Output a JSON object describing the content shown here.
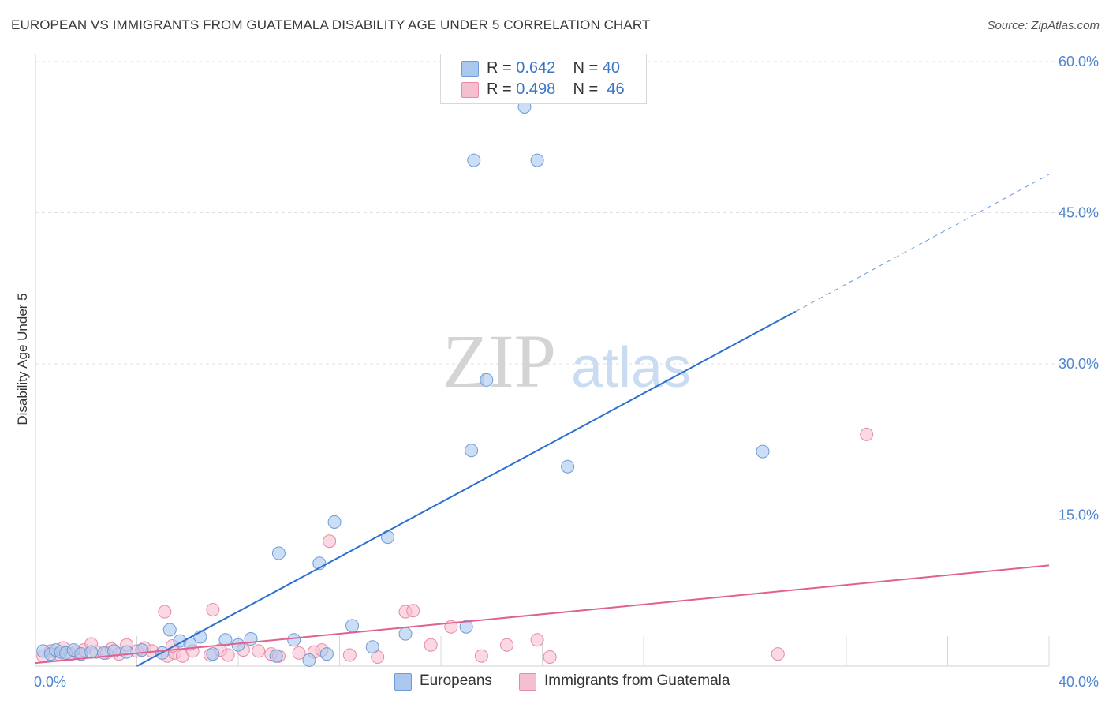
{
  "title": "EUROPEAN VS IMMIGRANTS FROM GUATEMALA DISABILITY AGE UNDER 5 CORRELATION CHART",
  "source": "Source: ZipAtlas.com",
  "watermark": {
    "zip": "ZIP",
    "atlas": "atlas"
  },
  "legend": [
    {
      "r_label": "R =",
      "r_value": "0.642",
      "n_label": "N =",
      "n_value": "40"
    },
    {
      "r_label": "R =",
      "r_value": "0.498",
      "n_label": "N =",
      "n_value": "46"
    }
  ],
  "bottom_legend": [
    "Europeans",
    "Immigrants from Guatemala"
  ],
  "colors": {
    "blue_fill": "#aac8ee",
    "blue_stroke": "#6f9bd6",
    "blue_line": "#2c6fcf",
    "pink_fill": "#f6bfd0",
    "pink_stroke": "#e98aa8",
    "pink_line": "#e0618e",
    "tick_text": "#4f85cf",
    "grid": "#e0e0e0"
  },
  "chart_data": {
    "type": "scatter",
    "title": "EUROPEAN VS IMMIGRANTS FROM GUATEMALA DISABILITY AGE UNDER 5 CORRELATION CHART",
    "xlabel": "",
    "ylabel": "Disability Age Under 5",
    "xlim": [
      0,
      40
    ],
    "ylim": [
      0,
      60
    ],
    "x_tick_labels": [
      "0.0%",
      "40.0%"
    ],
    "y_ticks": [
      15,
      30,
      45,
      60
    ],
    "y_tick_labels": [
      "15.0%",
      "30.0%",
      "45.0%",
      "60.0%"
    ],
    "series": [
      {
        "name": "Europeans",
        "r": 0.642,
        "n": 40,
        "trend": {
          "x0": 4.0,
          "y0": 0.0,
          "x1": 30.0,
          "y1": 35.2,
          "dash_x1": 40.0,
          "dash_y1": 48.8
        },
        "points": [
          [
            0.3,
            1.5
          ],
          [
            0.6,
            1.2
          ],
          [
            0.8,
            1.6
          ],
          [
            1.0,
            1.4
          ],
          [
            1.2,
            1.3
          ],
          [
            1.5,
            1.6
          ],
          [
            1.8,
            1.2
          ],
          [
            2.2,
            1.4
          ],
          [
            2.7,
            1.3
          ],
          [
            3.1,
            1.5
          ],
          [
            3.6,
            1.4
          ],
          [
            4.2,
            1.6
          ],
          [
            5.0,
            1.3
          ],
          [
            5.3,
            3.6
          ],
          [
            5.7,
            2.5
          ],
          [
            6.1,
            2.2
          ],
          [
            6.5,
            2.9
          ],
          [
            7.0,
            1.2
          ],
          [
            7.5,
            2.6
          ],
          [
            8.0,
            2.1
          ],
          [
            8.5,
            2.7
          ],
          [
            9.5,
            1.0
          ],
          [
            9.6,
            11.2
          ],
          [
            10.2,
            2.6
          ],
          [
            10.8,
            0.6
          ],
          [
            11.2,
            10.2
          ],
          [
            11.5,
            1.2
          ],
          [
            11.8,
            14.3
          ],
          [
            12.5,
            4.0
          ],
          [
            13.3,
            1.9
          ],
          [
            13.9,
            12.8
          ],
          [
            14.6,
            3.2
          ],
          [
            17.0,
            3.9
          ],
          [
            17.2,
            21.4
          ],
          [
            17.3,
            50.2
          ],
          [
            17.8,
            28.4
          ],
          [
            19.3,
            55.5
          ],
          [
            19.8,
            50.2
          ],
          [
            21.0,
            19.8
          ],
          [
            28.7,
            21.3
          ]
        ]
      },
      {
        "name": "Immigrants from Guatemala",
        "r": 0.498,
        "n": 46,
        "trend": {
          "x0": 0.0,
          "y0": 0.3,
          "x1": 40.0,
          "y1": 10.0
        },
        "points": [
          [
            0.3,
            1.0
          ],
          [
            0.6,
            1.5
          ],
          [
            0.9,
            1.2
          ],
          [
            1.1,
            1.8
          ],
          [
            1.4,
            1.2
          ],
          [
            1.6,
            1.4
          ],
          [
            1.9,
            1.6
          ],
          [
            2.2,
            2.2
          ],
          [
            2.4,
            1.4
          ],
          [
            2.8,
            1.3
          ],
          [
            3.0,
            1.7
          ],
          [
            3.3,
            1.2
          ],
          [
            3.6,
            2.1
          ],
          [
            4.0,
            1.5
          ],
          [
            4.3,
            1.8
          ],
          [
            4.6,
            1.5
          ],
          [
            5.1,
            5.4
          ],
          [
            5.2,
            1.0
          ],
          [
            5.5,
            1.3
          ],
          [
            5.8,
            1.0
          ],
          [
            6.2,
            1.5
          ],
          [
            6.9,
            1.1
          ],
          [
            7.0,
            5.6
          ],
          [
            7.3,
            1.6
          ],
          [
            7.6,
            1.1
          ],
          [
            8.2,
            1.6
          ],
          [
            8.8,
            1.5
          ],
          [
            9.3,
            1.2
          ],
          [
            9.6,
            1.0
          ],
          [
            10.4,
            1.3
          ],
          [
            11.0,
            1.4
          ],
          [
            11.3,
            1.6
          ],
          [
            11.6,
            12.4
          ],
          [
            12.4,
            1.1
          ],
          [
            13.5,
            0.9
          ],
          [
            14.6,
            5.4
          ],
          [
            14.9,
            5.5
          ],
          [
            15.6,
            2.1
          ],
          [
            16.4,
            3.9
          ],
          [
            17.6,
            1.0
          ],
          [
            18.6,
            2.1
          ],
          [
            19.8,
            2.6
          ],
          [
            20.3,
            0.9
          ],
          [
            29.3,
            1.2
          ],
          [
            32.8,
            23.0
          ],
          [
            5.4,
            2.0
          ]
        ]
      }
    ]
  }
}
